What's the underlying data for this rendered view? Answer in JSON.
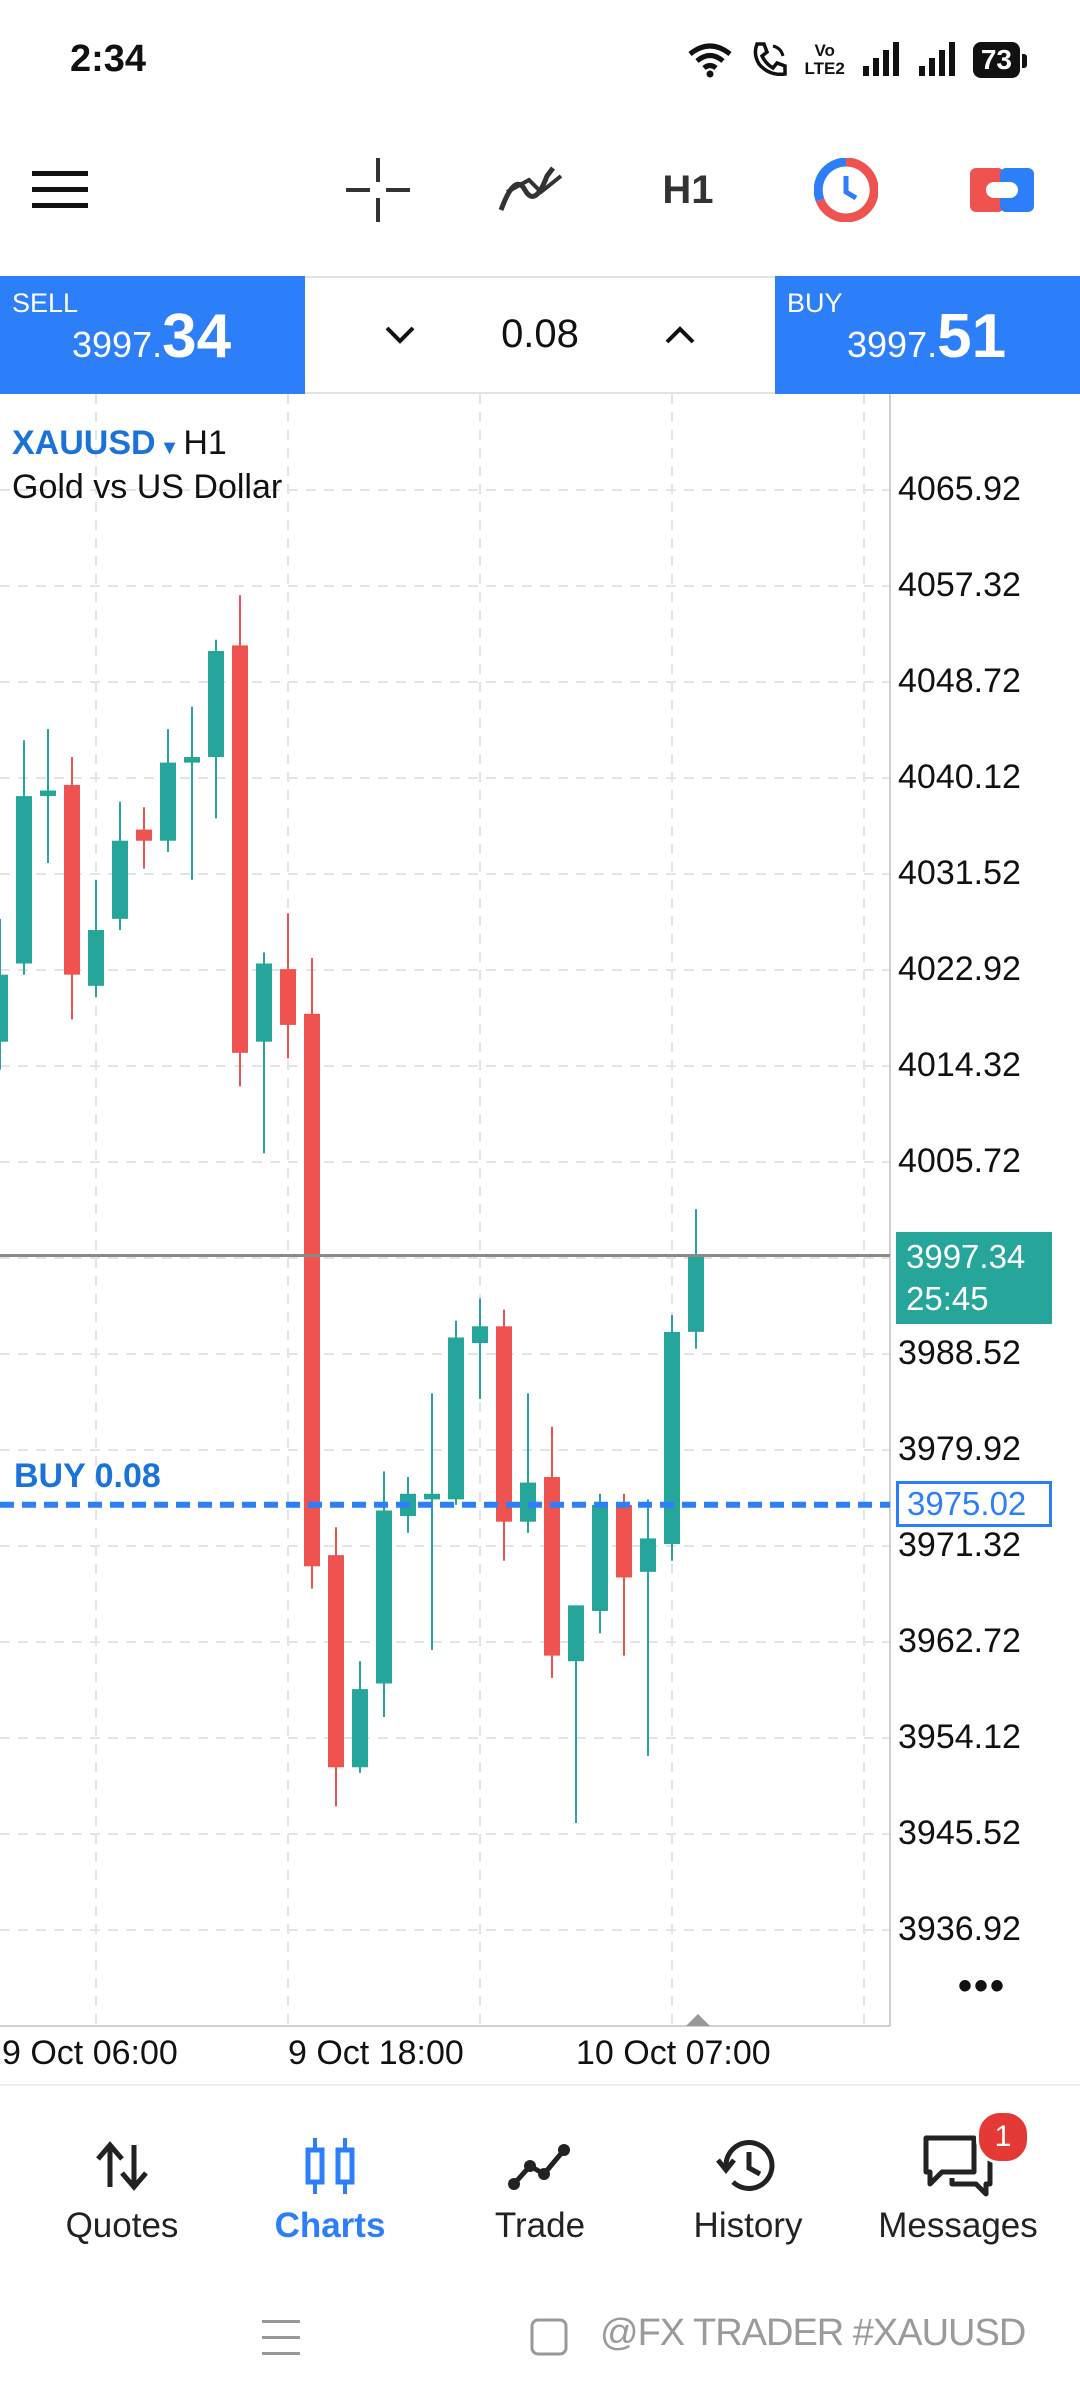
{
  "status_bar": {
    "time": "2:34",
    "volte_top": "Vo",
    "volte_bottom": "LTE2",
    "battery": "73"
  },
  "toolbar": {
    "icons": [
      "menu-icon",
      "crosshair-icon",
      "indicators-icon",
      "timeframe",
      "one-click-trading-icon",
      "account-icon"
    ],
    "timeframe_label": "H1"
  },
  "trade_panel": {
    "sell_label": "SELL",
    "sell_price_small": "3997.",
    "sell_price_big": "34",
    "lot_value": "0.08",
    "buy_label": "BUY",
    "buy_price_small": "3997.",
    "buy_price_big": "51"
  },
  "chart": {
    "symbol": "XAUUSD",
    "timeframe": "H1",
    "description": "Gold vs US Dollar",
    "price_labels": [
      "4065.92",
      "4057.32",
      "4048.72",
      "4040.12",
      "4031.52",
      "4022.92",
      "4014.32",
      "4005.72",
      "3988.52",
      "3979.92",
      "3971.32",
      "3962.72",
      "3954.12",
      "3945.52",
      "3936.92"
    ],
    "current_price": "3997.34",
    "countdown": "25:45",
    "buy_position_label": "BUY 0.08",
    "buy_position_price": "3975.02",
    "time_labels": [
      "9 Oct 06:00",
      "9 Oct 18:00",
      "10 Oct 07:00"
    ],
    "more_label": "•••",
    "colors": {
      "bull": "#26a69a",
      "bear": "#ef5350",
      "accent": "#2d7ff9"
    }
  },
  "chart_data": {
    "type": "candlestick",
    "symbol": "XAUUSD",
    "timeframe": "H1",
    "ylim": [
      3932.0,
      4072.0
    ],
    "current_price": 3997.34,
    "buy_line": 3975.02,
    "candles": [
      {
        "o": 4016.5,
        "h": 4027.5,
        "l": 4014.0,
        "c": 4022.5
      },
      {
        "o": 4023.5,
        "h": 4043.5,
        "l": 4022.5,
        "c": 4038.5
      },
      {
        "o": 4038.5,
        "h": 4044.5,
        "l": 4032.5,
        "c": 4039.0
      },
      {
        "o": 4039.5,
        "h": 4042.0,
        "l": 4018.5,
        "c": 4022.5
      },
      {
        "o": 4021.5,
        "h": 4031.0,
        "l": 4020.5,
        "c": 4026.5
      },
      {
        "o": 4027.5,
        "h": 4038.0,
        "l": 4026.5,
        "c": 4034.5
      },
      {
        "o": 4035.5,
        "h": 4037.5,
        "l": 4032.0,
        "c": 4034.5
      },
      {
        "o": 4034.5,
        "h": 4044.5,
        "l": 4033.5,
        "c": 4041.5
      },
      {
        "o": 4041.5,
        "h": 4046.5,
        "l": 4031.0,
        "c": 4042.0
      },
      {
        "o": 4042.0,
        "h": 4052.5,
        "l": 4036.5,
        "c": 4051.5
      },
      {
        "o": 4052.0,
        "h": 4056.5,
        "l": 4012.5,
        "c": 4015.5
      },
      {
        "o": 4016.5,
        "h": 4024.5,
        "l": 4006.5,
        "c": 4023.5
      },
      {
        "o": 4023.0,
        "h": 4028.0,
        "l": 4015.0,
        "c": 4018.0
      },
      {
        "o": 4019.0,
        "h": 4024.0,
        "l": 3967.5,
        "c": 3969.5
      },
      {
        "o": 3970.5,
        "h": 3973.0,
        "l": 3948.0,
        "c": 3951.5
      },
      {
        "o": 3951.5,
        "h": 3961.0,
        "l": 3951.0,
        "c": 3958.5
      },
      {
        "o": 3959.0,
        "h": 3978.0,
        "l": 3956.0,
        "c": 3974.5
      },
      {
        "o": 3974.0,
        "h": 3977.5,
        "l": 3972.5,
        "c": 3976.0
      },
      {
        "o": 3975.5,
        "h": 3985.0,
        "l": 3962.0,
        "c": 3976.0
      },
      {
        "o": 3975.5,
        "h": 3991.5,
        "l": 3975.0,
        "c": 3990.0
      },
      {
        "o": 3989.5,
        "h": 3993.5,
        "l": 3984.5,
        "c": 3991.0
      },
      {
        "o": 3991.0,
        "h": 3992.5,
        "l": 3970.0,
        "c": 3973.5
      },
      {
        "o": 3973.5,
        "h": 3985.0,
        "l": 3972.5,
        "c": 3977.0
      },
      {
        "o": 3977.5,
        "h": 3982.0,
        "l": 3959.5,
        "c": 3961.5
      },
      {
        "o": 3961.0,
        "h": 3966.0,
        "l": 3946.5,
        "c": 3966.0
      },
      {
        "o": 3965.5,
        "h": 3976.0,
        "l": 3963.5,
        "c": 3975.0
      },
      {
        "o": 3975.0,
        "h": 3976.0,
        "l": 3961.5,
        "c": 3968.5
      },
      {
        "o": 3969.0,
        "h": 3975.5,
        "l": 3952.5,
        "c": 3972.0
      },
      {
        "o": 3971.5,
        "h": 3992.0,
        "l": 3970.0,
        "c": 3990.5
      },
      {
        "o": 3990.5,
        "h": 4001.5,
        "l": 3989.0,
        "c": 3997.34
      }
    ]
  },
  "bottom_nav": [
    {
      "label": "Quotes",
      "icon": "sort-arrows-icon",
      "active": false
    },
    {
      "label": "Charts",
      "icon": "candles-icon",
      "active": true
    },
    {
      "label": "Trade",
      "icon": "trend-icon",
      "active": false
    },
    {
      "label": "History",
      "icon": "history-icon",
      "active": false
    },
    {
      "label": "Messages",
      "icon": "messages-icon",
      "active": false,
      "badge": "1"
    }
  ],
  "watermark": "@FX TRADER #XAUUSD"
}
